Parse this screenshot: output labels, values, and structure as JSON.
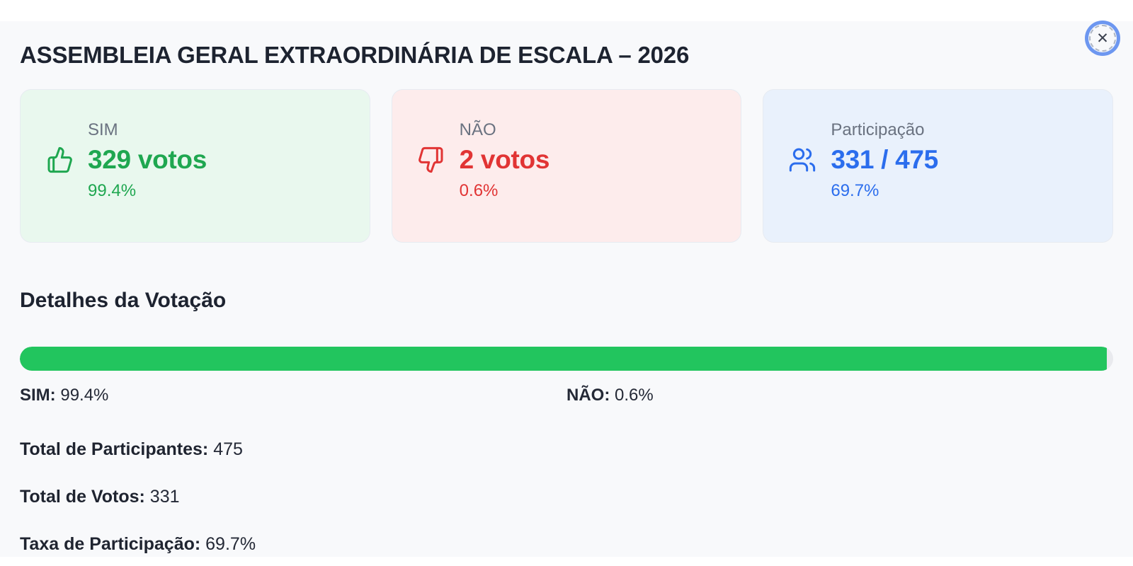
{
  "window": {
    "title": "ASSEMBLEIA GERAL EXTRAORDINÁRIA DE ESCALA – 2026"
  },
  "close_button": {
    "glyph": "✕"
  },
  "colors": {
    "panel_bg": "#f8f9fb",
    "sim_green": "#1fa750",
    "sim_card_bg": "#e9f8ee",
    "nao_red": "#e13434",
    "nao_card_bg": "#fdecec",
    "part_blue": "#2b6ded",
    "part_card_bg": "#e9f1fc",
    "progress_fill": "#22c55e",
    "progress_track": "#e9eaee",
    "focus_ring_blue": "#6d97f0"
  },
  "cards": [
    {
      "id": "sim",
      "label": "SIM",
      "icon": "thumbs-up-icon",
      "value": "329 votos",
      "pct": "99.4%"
    },
    {
      "id": "nao",
      "label": "NÃO",
      "icon": "thumbs-down-icon",
      "value": "2 votos",
      "pct": "0.6%"
    },
    {
      "id": "participacao",
      "label": "Participação",
      "icon": "users-icon",
      "value": "331 / 475",
      "pct": "69.7%"
    }
  ],
  "details": {
    "title": "Detalhes da Votação",
    "progress": {
      "sim_percent": 99.4,
      "nao_percent": 0.6
    },
    "legend": {
      "sim_label": "SIM:",
      "sim_value": "99.4%",
      "nao_label": "NÃO:",
      "nao_value": "0.6%"
    },
    "stats": [
      {
        "label": "Total de Participantes:",
        "value": "475"
      },
      {
        "label": "Total de Votos:",
        "value": "331"
      },
      {
        "label": "Taxa de Participação:",
        "value": "69.7%"
      }
    ]
  }
}
